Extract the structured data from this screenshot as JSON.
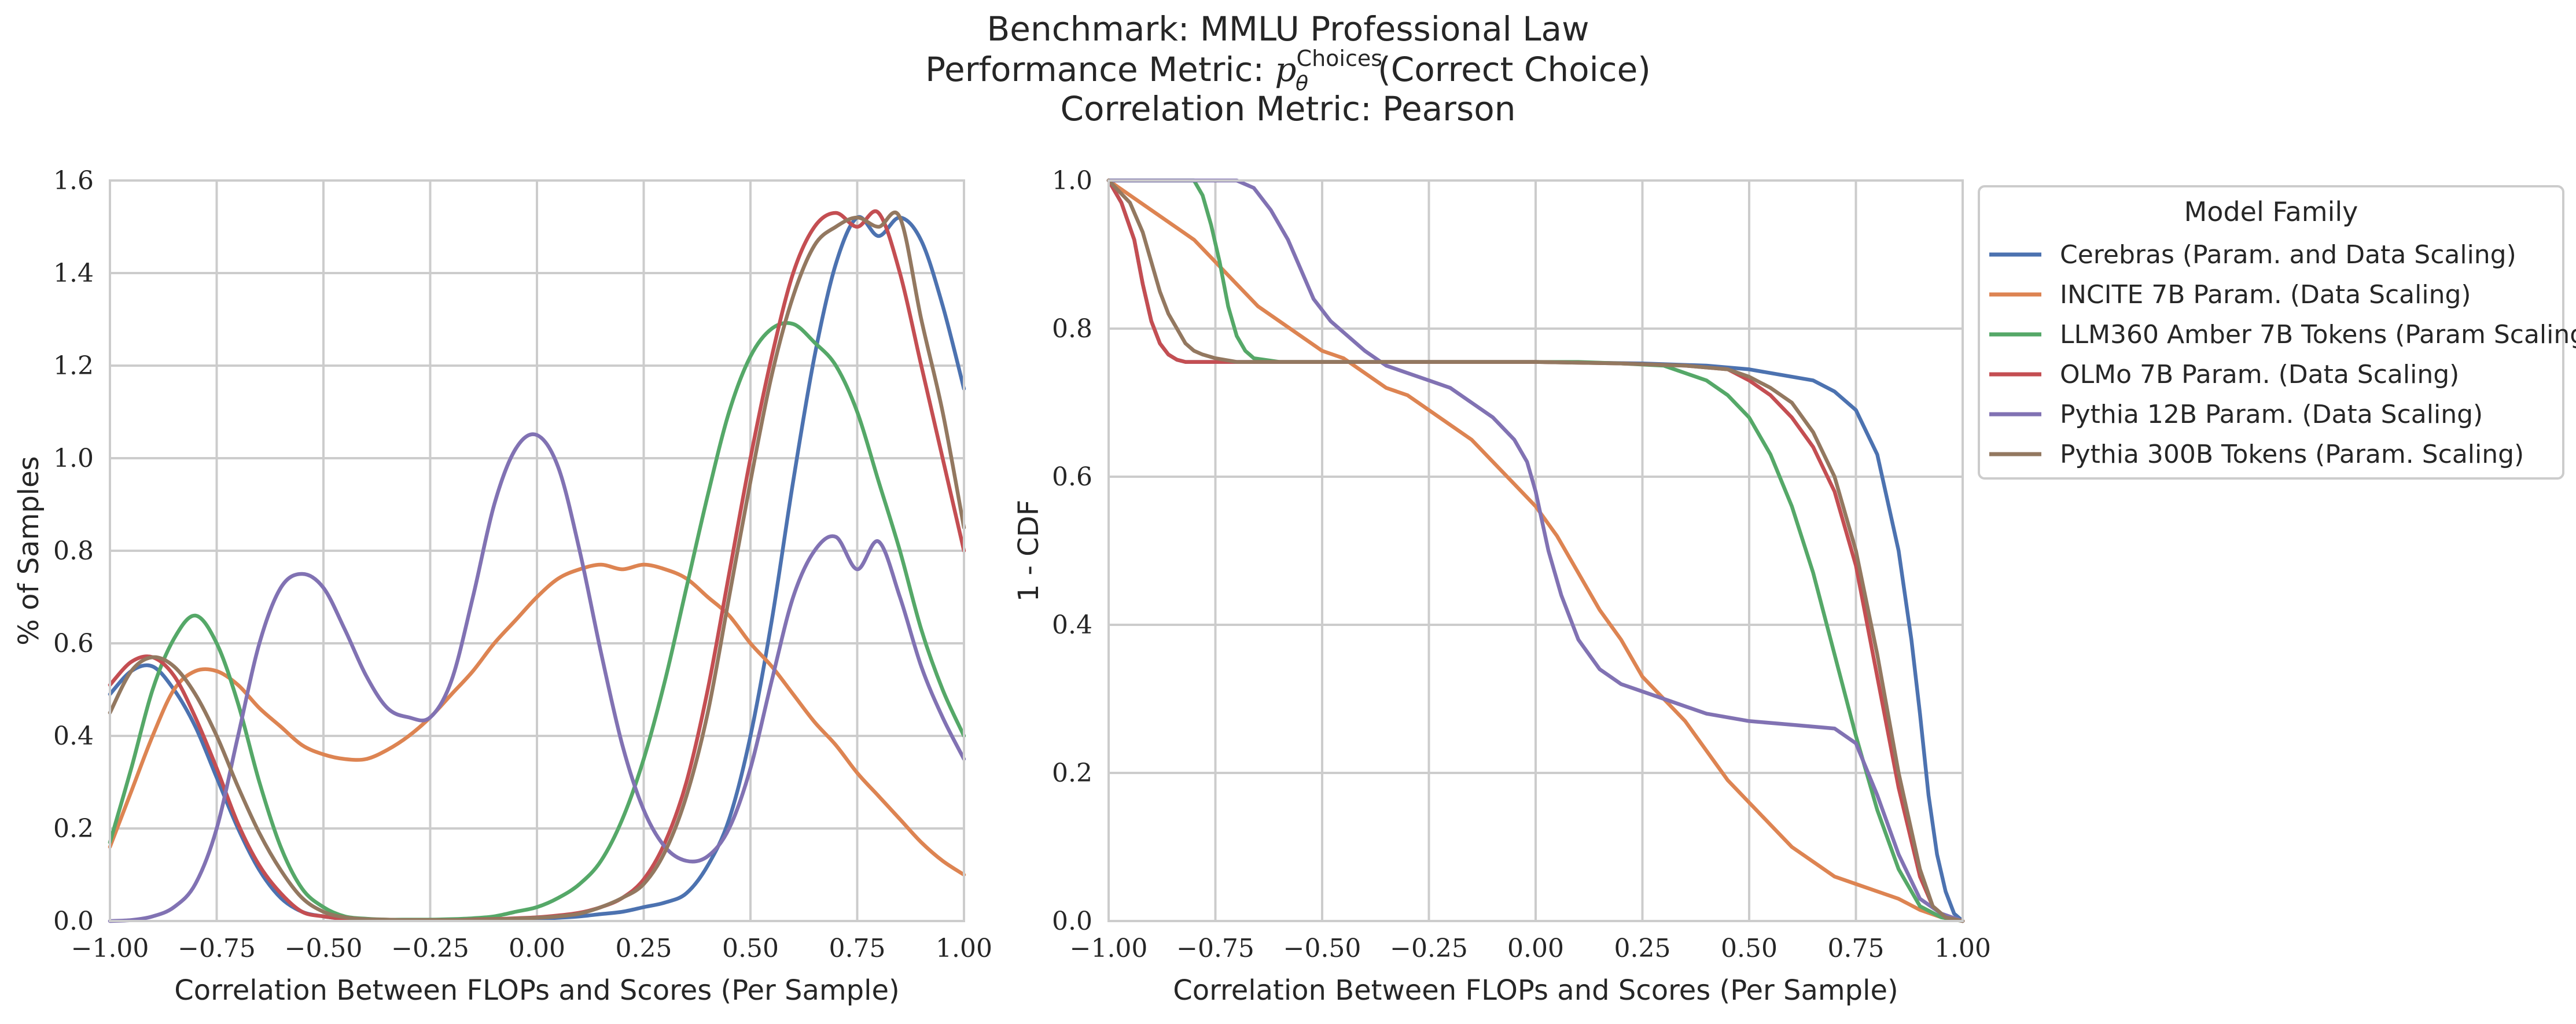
{
  "figure_title": {
    "line1": "Benchmark: MMLU Professional Law",
    "line2_prefix": "Performance Metric: ",
    "line2_symbol": "p",
    "line2_superscript": "Choices",
    "line2_subscript": "θ",
    "line2_suffix": "(Correct Choice)",
    "line3": "Correlation Metric: Pearson"
  },
  "legend": {
    "title": "Model Family",
    "position": "right of second panel, top"
  },
  "colors": {
    "Cerebras": "#4c72b0",
    "INCITE": "#dd8452",
    "LLM360": "#55a868",
    "OLMo": "#c44e52",
    "Pythia12B": "#8172b3",
    "Pythia300B": "#937860"
  },
  "chart_data": [
    {
      "type": "line",
      "subtype": "kde",
      "title": "",
      "xlabel": "Correlation Between FLOPs and Scores (Per Sample)",
      "ylabel": "% of Samples",
      "xlim": [
        -1.0,
        1.0
      ],
      "ylim": [
        0.0,
        1.6
      ],
      "grid": true,
      "xticks": [
        "−1.00",
        "−0.75",
        "−0.50",
        "−0.25",
        "0.00",
        "0.25",
        "0.50",
        "0.75",
        "1.00"
      ],
      "yticks": [
        "0.0",
        "0.2",
        "0.4",
        "0.6",
        "0.8",
        "1.0",
        "1.2",
        "1.4",
        "1.6"
      ],
      "x": [
        -1.0,
        -0.95,
        -0.9,
        -0.85,
        -0.8,
        -0.75,
        -0.7,
        -0.65,
        -0.6,
        -0.55,
        -0.5,
        -0.45,
        -0.4,
        -0.35,
        -0.3,
        -0.25,
        -0.2,
        -0.15,
        -0.1,
        -0.05,
        0.0,
        0.05,
        0.1,
        0.15,
        0.2,
        0.25,
        0.3,
        0.35,
        0.4,
        0.45,
        0.5,
        0.55,
        0.6,
        0.65,
        0.7,
        0.75,
        0.8,
        0.85,
        0.9,
        0.95,
        1.0
      ],
      "series": [
        {
          "name": "Cerebras (Param. and Data Scaling)",
          "color": "#4c72b0",
          "values": [
            0.49,
            0.54,
            0.55,
            0.5,
            0.42,
            0.31,
            0.2,
            0.11,
            0.05,
            0.02,
            0.01,
            0.005,
            0.003,
            0.002,
            0.002,
            0.002,
            0.002,
            0.002,
            0.003,
            0.004,
            0.005,
            0.007,
            0.01,
            0.015,
            0.02,
            0.03,
            0.04,
            0.06,
            0.12,
            0.22,
            0.4,
            0.65,
            0.95,
            1.22,
            1.42,
            1.52,
            1.48,
            1.52,
            1.47,
            1.33,
            1.15
          ]
        },
        {
          "name": "INCITE 7B Param. (Data Scaling)",
          "color": "#dd8452",
          "values": [
            0.16,
            0.28,
            0.4,
            0.5,
            0.54,
            0.54,
            0.51,
            0.46,
            0.42,
            0.38,
            0.36,
            0.35,
            0.35,
            0.37,
            0.4,
            0.44,
            0.49,
            0.54,
            0.6,
            0.65,
            0.7,
            0.74,
            0.76,
            0.77,
            0.76,
            0.77,
            0.76,
            0.74,
            0.7,
            0.66,
            0.6,
            0.55,
            0.49,
            0.43,
            0.38,
            0.32,
            0.27,
            0.22,
            0.17,
            0.13,
            0.1
          ]
        },
        {
          "name": "LLM360 Amber 7B Tokens (Param Scaling)",
          "color": "#55a868",
          "values": [
            0.17,
            0.33,
            0.5,
            0.61,
            0.66,
            0.6,
            0.47,
            0.3,
            0.16,
            0.07,
            0.03,
            0.01,
            0.005,
            0.003,
            0.003,
            0.003,
            0.004,
            0.006,
            0.01,
            0.02,
            0.03,
            0.05,
            0.08,
            0.13,
            0.22,
            0.35,
            0.52,
            0.72,
            0.92,
            1.1,
            1.22,
            1.28,
            1.29,
            1.25,
            1.2,
            1.1,
            0.95,
            0.8,
            0.63,
            0.5,
            0.4
          ]
        },
        {
          "name": "OLMo 7B Param. (Data Scaling)",
          "color": "#c44e52",
          "values": [
            0.51,
            0.56,
            0.57,
            0.53,
            0.44,
            0.33,
            0.21,
            0.12,
            0.06,
            0.02,
            0.01,
            0.005,
            0.003,
            0.002,
            0.002,
            0.002,
            0.002,
            0.003,
            0.004,
            0.006,
            0.008,
            0.012,
            0.018,
            0.03,
            0.05,
            0.09,
            0.17,
            0.3,
            0.5,
            0.75,
            1.0,
            1.22,
            1.4,
            1.5,
            1.53,
            1.5,
            1.53,
            1.4,
            1.2,
            1.0,
            0.8
          ]
        },
        {
          "name": "Pythia 12B Param. (Data Scaling)",
          "color": "#8172b3",
          "values": [
            0.0,
            0.002,
            0.01,
            0.03,
            0.08,
            0.2,
            0.4,
            0.6,
            0.72,
            0.75,
            0.72,
            0.63,
            0.53,
            0.46,
            0.44,
            0.44,
            0.52,
            0.7,
            0.9,
            1.02,
            1.05,
            0.98,
            0.8,
            0.58,
            0.38,
            0.24,
            0.16,
            0.13,
            0.14,
            0.2,
            0.33,
            0.52,
            0.7,
            0.8,
            0.83,
            0.76,
            0.82,
            0.7,
            0.55,
            0.44,
            0.35
          ]
        },
        {
          "name": "Pythia 300B Tokens (Param. Scaling)",
          "color": "#937860",
          "values": [
            0.45,
            0.54,
            0.57,
            0.55,
            0.49,
            0.4,
            0.29,
            0.19,
            0.11,
            0.05,
            0.02,
            0.008,
            0.004,
            0.003,
            0.002,
            0.002,
            0.002,
            0.002,
            0.003,
            0.005,
            0.007,
            0.01,
            0.016,
            0.03,
            0.05,
            0.08,
            0.15,
            0.27,
            0.45,
            0.7,
            0.95,
            1.18,
            1.35,
            1.46,
            1.5,
            1.52,
            1.5,
            1.52,
            1.3,
            1.1,
            0.85
          ]
        }
      ]
    },
    {
      "type": "line",
      "subtype": "survival (1 - CDF)",
      "title": "",
      "xlabel": "Correlation Between FLOPs and Scores (Per Sample)",
      "ylabel": "1 - CDF",
      "xlim": [
        -1.0,
        1.0
      ],
      "ylim": [
        0.0,
        1.0
      ],
      "grid": true,
      "xticks": [
        "−1.00",
        "−0.75",
        "−0.50",
        "−0.25",
        "0.00",
        "0.25",
        "0.50",
        "0.75",
        "1.00"
      ],
      "yticks": [
        "0.0",
        "0.2",
        "0.4",
        "0.6",
        "0.8",
        "1.0"
      ],
      "series": [
        {
          "name": "Cerebras (Param. and Data Scaling)",
          "color": "#4c72b0",
          "x": [
            -1.0,
            -0.97,
            -0.94,
            -0.92,
            -0.9,
            -0.88,
            -0.86,
            -0.84,
            -0.82,
            -0.8,
            -0.7,
            -0.5,
            -0.25,
            0.0,
            0.25,
            0.4,
            0.5,
            0.55,
            0.6,
            0.65,
            0.7,
            0.75,
            0.8,
            0.85,
            0.88,
            0.9,
            0.92,
            0.94,
            0.96,
            0.98,
            1.0
          ],
          "y": [
            1.0,
            0.97,
            0.92,
            0.86,
            0.81,
            0.78,
            0.765,
            0.758,
            0.755,
            0.755,
            0.755,
            0.755,
            0.755,
            0.755,
            0.753,
            0.75,
            0.745,
            0.74,
            0.735,
            0.73,
            0.715,
            0.69,
            0.63,
            0.5,
            0.38,
            0.28,
            0.17,
            0.09,
            0.04,
            0.01,
            0.0
          ]
        },
        {
          "name": "INCITE 7B Param. (Data Scaling)",
          "color": "#dd8452",
          "x": [
            -1.0,
            -0.95,
            -0.9,
            -0.85,
            -0.8,
            -0.75,
            -0.7,
            -0.65,
            -0.6,
            -0.55,
            -0.5,
            -0.45,
            -0.4,
            -0.35,
            -0.3,
            -0.25,
            -0.2,
            -0.15,
            -0.1,
            -0.05,
            0.0,
            0.05,
            0.1,
            0.15,
            0.2,
            0.25,
            0.3,
            0.35,
            0.4,
            0.45,
            0.5,
            0.55,
            0.6,
            0.65,
            0.7,
            0.75,
            0.8,
            0.85,
            0.9,
            0.95,
            1.0
          ],
          "y": [
            1.0,
            0.98,
            0.96,
            0.94,
            0.92,
            0.89,
            0.86,
            0.83,
            0.81,
            0.79,
            0.77,
            0.76,
            0.74,
            0.72,
            0.71,
            0.69,
            0.67,
            0.65,
            0.62,
            0.59,
            0.56,
            0.52,
            0.47,
            0.42,
            0.38,
            0.33,
            0.3,
            0.27,
            0.23,
            0.19,
            0.16,
            0.13,
            0.1,
            0.08,
            0.06,
            0.05,
            0.04,
            0.03,
            0.015,
            0.005,
            0.0
          ]
        },
        {
          "name": "LLM360 Amber 7B Tokens (Param Scaling)",
          "color": "#55a868",
          "x": [
            -1.0,
            -0.8,
            -0.78,
            -0.76,
            -0.74,
            -0.72,
            -0.7,
            -0.68,
            -0.66,
            -0.6,
            -0.4,
            -0.2,
            0.0,
            0.1,
            0.2,
            0.3,
            0.35,
            0.4,
            0.45,
            0.5,
            0.55,
            0.6,
            0.65,
            0.7,
            0.75,
            0.8,
            0.85,
            0.9,
            0.95,
            1.0
          ],
          "y": [
            1.0,
            1.0,
            0.98,
            0.94,
            0.89,
            0.83,
            0.79,
            0.77,
            0.76,
            0.755,
            0.755,
            0.755,
            0.755,
            0.755,
            0.753,
            0.75,
            0.74,
            0.73,
            0.71,
            0.68,
            0.63,
            0.56,
            0.47,
            0.36,
            0.25,
            0.15,
            0.07,
            0.02,
            0.005,
            0.0
          ]
        },
        {
          "name": "OLMo 7B Param. (Data Scaling)",
          "color": "#c44e52",
          "x": [
            -1.0,
            -0.97,
            -0.94,
            -0.92,
            -0.9,
            -0.88,
            -0.86,
            -0.84,
            -0.82,
            -0.8,
            -0.6,
            -0.3,
            0.0,
            0.2,
            0.35,
            0.45,
            0.5,
            0.55,
            0.6,
            0.65,
            0.7,
            0.75,
            0.8,
            0.85,
            0.9,
            0.93,
            0.96,
            1.0
          ],
          "y": [
            1.0,
            0.97,
            0.92,
            0.86,
            0.81,
            0.78,
            0.765,
            0.758,
            0.755,
            0.755,
            0.755,
            0.755,
            0.755,
            0.753,
            0.75,
            0.745,
            0.73,
            0.71,
            0.68,
            0.64,
            0.58,
            0.48,
            0.33,
            0.18,
            0.06,
            0.02,
            0.005,
            0.0
          ]
        },
        {
          "name": "Pythia 12B Param. (Data Scaling)",
          "color": "#8172b3",
          "x": [
            -1.0,
            -0.7,
            -0.66,
            -0.62,
            -0.58,
            -0.55,
            -0.52,
            -0.48,
            -0.44,
            -0.4,
            -0.35,
            -0.3,
            -0.25,
            -0.2,
            -0.15,
            -0.1,
            -0.05,
            -0.02,
            0.0,
            0.03,
            0.06,
            0.1,
            0.15,
            0.2,
            0.3,
            0.4,
            0.5,
            0.6,
            0.7,
            0.75,
            0.8,
            0.85,
            0.9,
            0.95,
            1.0
          ],
          "y": [
            1.0,
            1.0,
            0.99,
            0.96,
            0.92,
            0.88,
            0.84,
            0.81,
            0.79,
            0.77,
            0.75,
            0.74,
            0.73,
            0.72,
            0.7,
            0.68,
            0.65,
            0.62,
            0.58,
            0.5,
            0.44,
            0.38,
            0.34,
            0.32,
            0.3,
            0.28,
            0.27,
            0.265,
            0.26,
            0.24,
            0.17,
            0.09,
            0.03,
            0.01,
            0.0
          ]
        },
        {
          "name": "Pythia 300B Tokens (Param. Scaling)",
          "color": "#937860",
          "x": [
            -1.0,
            -0.95,
            -0.92,
            -0.9,
            -0.88,
            -0.86,
            -0.84,
            -0.82,
            -0.8,
            -0.78,
            -0.75,
            -0.7,
            -0.5,
            -0.2,
            0.0,
            0.2,
            0.35,
            0.45,
            0.5,
            0.55,
            0.6,
            0.65,
            0.7,
            0.75,
            0.8,
            0.85,
            0.9,
            0.93,
            0.96,
            1.0
          ],
          "y": [
            1.0,
            0.97,
            0.93,
            0.89,
            0.85,
            0.82,
            0.8,
            0.78,
            0.77,
            0.765,
            0.76,
            0.755,
            0.755,
            0.755,
            0.755,
            0.753,
            0.75,
            0.745,
            0.735,
            0.72,
            0.7,
            0.66,
            0.6,
            0.5,
            0.36,
            0.2,
            0.07,
            0.02,
            0.005,
            0.0
          ]
        }
      ]
    }
  ]
}
